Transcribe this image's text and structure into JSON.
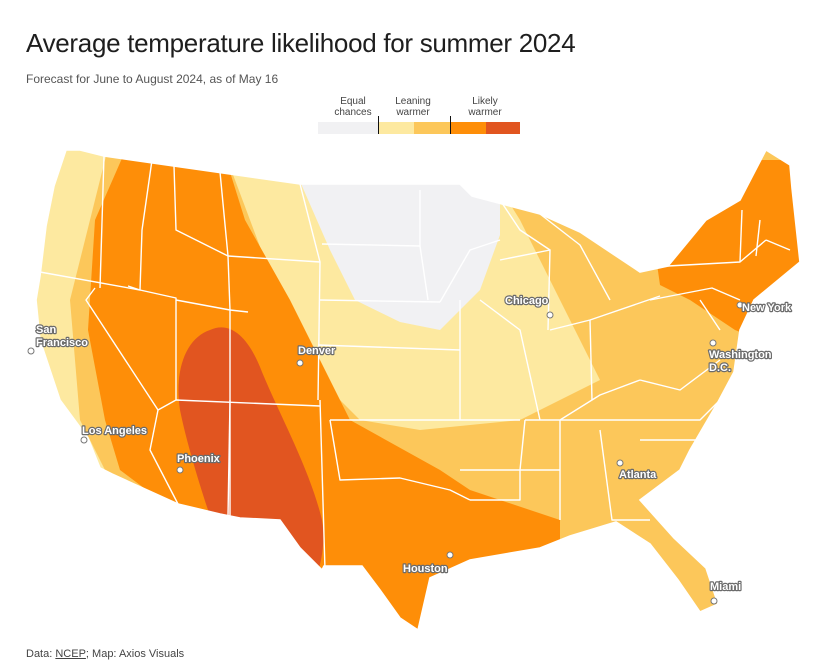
{
  "title": "Average temperature likelihood for summer 2024",
  "subtitle": "Forecast for June to August 2024, as of May 16",
  "legend": {
    "groups": [
      {
        "label_line1": "Equal",
        "label_line2": "chances"
      },
      {
        "label_line1": "Leaning",
        "label_line2": "warmer"
      },
      {
        "label_line1": "Likely",
        "label_line2": "warmer"
      }
    ],
    "colors": {
      "equal": "#f1f1f3",
      "leaning_1": "#fde9a0",
      "leaning_2": "#fcc75a",
      "likely_1": "#fe8e08",
      "likely_2": "#e15520"
    }
  },
  "cities": [
    {
      "name": "Chicago"
    },
    {
      "name": "New York"
    },
    {
      "name_line1": "Washington",
      "name_line2": "D.C."
    },
    {
      "name_line1": "San",
      "name_line2": "Francisco"
    },
    {
      "name": "Denver"
    },
    {
      "name": "Los Angeles"
    },
    {
      "name": "Phoenix"
    },
    {
      "name": "Atlanta"
    },
    {
      "name": "Houston"
    },
    {
      "name": "Miami"
    }
  ],
  "source": {
    "prefix": "Data: ",
    "link_text": "NCEP",
    "suffix": "; Map: Axios Visuals"
  }
}
